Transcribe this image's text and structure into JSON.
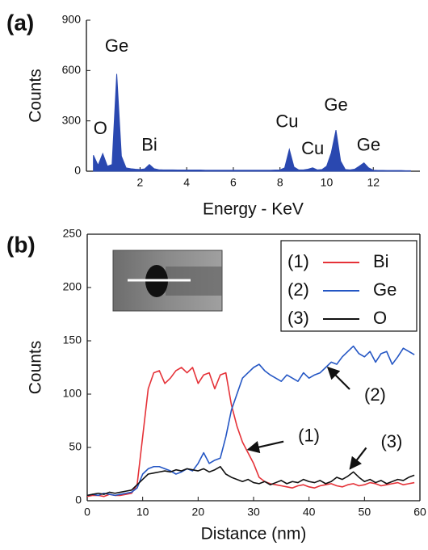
{
  "chart_data": [
    {
      "type": "area",
      "panel_label": "(a)",
      "x_label": "Energy - KeV",
      "y_label": "Counts",
      "color": "#2a48b0",
      "xlim": [
        -0.3,
        14
      ],
      "ylim": [
        0,
        900
      ],
      "xticks": [
        2,
        4,
        6,
        8,
        10,
        12
      ],
      "yticks": [
        0,
        300,
        600,
        900
      ],
      "x": [
        0,
        0.2,
        0.4,
        0.6,
        0.8,
        1.0,
        1.2,
        1.4,
        1.6,
        1.8,
        2.0,
        2.2,
        2.4,
        2.6,
        2.8,
        3.0,
        3.2,
        3.4,
        3.6,
        3.8,
        4.0,
        4.2,
        4.4,
        4.6,
        4.8,
        5.0,
        5.2,
        5.4,
        5.6,
        5.8,
        6.0,
        6.2,
        6.4,
        6.6,
        6.8,
        7.0,
        7.2,
        7.4,
        7.6,
        7.8,
        8.0,
        8.2,
        8.4,
        8.6,
        8.8,
        9.0,
        9.2,
        9.4,
        9.6,
        9.8,
        10.0,
        10.2,
        10.4,
        10.6,
        10.8,
        11.0,
        11.2,
        11.4,
        11.6,
        11.8,
        12.0,
        12.2,
        12.4,
        12.6,
        12.8,
        13.0,
        13.2,
        13.4,
        13.6
      ],
      "values": [
        95,
        35,
        105,
        30,
        40,
        580,
        90,
        20,
        15,
        12,
        10,
        14,
        40,
        15,
        9,
        8,
        8,
        8,
        7,
        7,
        7,
        7,
        7,
        7,
        6,
        6,
        6,
        6,
        6,
        6,
        6,
        6,
        6,
        6,
        6,
        6,
        6,
        6,
        6,
        7,
        8,
        20,
        130,
        25,
        8,
        8,
        12,
        20,
        8,
        10,
        30,
        110,
        245,
        60,
        10,
        8,
        12,
        30,
        50,
        20,
        6,
        5,
        5,
        4,
        4,
        4,
        4,
        3,
        3
      ],
      "annotations": [
        {
          "text": "Ge",
          "x": 1.0,
          "y": 740
        },
        {
          "text": "O",
          "x": 0.3,
          "y": 250
        },
        {
          "text": "Bi",
          "x": 2.4,
          "y": 150
        },
        {
          "text": "Cu",
          "x": 8.3,
          "y": 290
        },
        {
          "text": "Cu",
          "x": 9.4,
          "y": 130
        },
        {
          "text": "Ge",
          "x": 10.4,
          "y": 390
        },
        {
          "text": "Ge",
          "x": 11.8,
          "y": 150
        }
      ]
    },
    {
      "type": "line",
      "panel_label": "(b)",
      "x_label": "Distance (nm)",
      "y_label": "Counts",
      "xlim": [
        0,
        60
      ],
      "ylim": [
        0,
        250
      ],
      "xticks": [
        0,
        10,
        20,
        30,
        40,
        50,
        60
      ],
      "yticks": [
        0,
        50,
        100,
        150,
        200,
        250
      ],
      "x": [
        0,
        1,
        2,
        3,
        4,
        5,
        6,
        7,
        8,
        9,
        10,
        11,
        12,
        13,
        14,
        15,
        16,
        17,
        18,
        19,
        20,
        21,
        22,
        23,
        24,
        25,
        26,
        27,
        28,
        29,
        30,
        31,
        32,
        33,
        34,
        35,
        36,
        37,
        38,
        39,
        40,
        41,
        42,
        43,
        44,
        45,
        46,
        47,
        48,
        49,
        50,
        51,
        52,
        53,
        54,
        55,
        56,
        57,
        58,
        59
      ],
      "series": [
        {
          "number": "(1)",
          "name": "Bi",
          "color": "#e53238",
          "values": [
            4,
            5,
            5,
            4,
            6,
            5,
            5,
            6,
            7,
            15,
            60,
            105,
            120,
            122,
            110,
            115,
            122,
            125,
            120,
            125,
            110,
            118,
            120,
            105,
            118,
            120,
            90,
            70,
            55,
            45,
            35,
            22,
            18,
            16,
            15,
            14,
            13,
            12,
            14,
            15,
            13,
            12,
            14,
            15,
            16,
            14,
            13,
            15,
            16,
            14,
            15,
            17,
            16,
            14,
            15,
            16,
            17,
            15,
            16,
            17
          ]
        },
        {
          "number": "(2)",
          "name": "Ge",
          "color": "#2456c4",
          "values": [
            5,
            6,
            5,
            7,
            6,
            5,
            6,
            7,
            8,
            12,
            25,
            30,
            32,
            32,
            30,
            28,
            25,
            27,
            30,
            28,
            35,
            45,
            35,
            38,
            40,
            60,
            85,
            100,
            115,
            120,
            125,
            128,
            122,
            118,
            115,
            112,
            118,
            115,
            112,
            120,
            115,
            118,
            120,
            125,
            130,
            128,
            135,
            140,
            145,
            138,
            135,
            140,
            130,
            138,
            140,
            128,
            135,
            143,
            140,
            137
          ]
        },
        {
          "number": "(3)",
          "name": "O",
          "color": "#111111",
          "values": [
            5,
            6,
            7,
            6,
            8,
            7,
            8,
            9,
            10,
            15,
            20,
            25,
            26,
            27,
            28,
            27,
            29,
            28,
            30,
            29,
            28,
            30,
            27,
            29,
            32,
            25,
            22,
            20,
            18,
            20,
            17,
            16,
            18,
            15,
            17,
            19,
            16,
            18,
            17,
            20,
            18,
            17,
            19,
            16,
            18,
            22,
            20,
            23,
            27,
            22,
            18,
            20,
            17,
            19,
            16,
            18,
            20,
            19,
            22,
            24
          ]
        }
      ],
      "annotations": [
        {
          "text": "(1)",
          "x": 29,
          "y": 48
        },
        {
          "text": "(2)",
          "x": 43.4,
          "y": 125
        },
        {
          "text": "(3)",
          "x": 47.4,
          "y": 30
        }
      ]
    }
  ]
}
